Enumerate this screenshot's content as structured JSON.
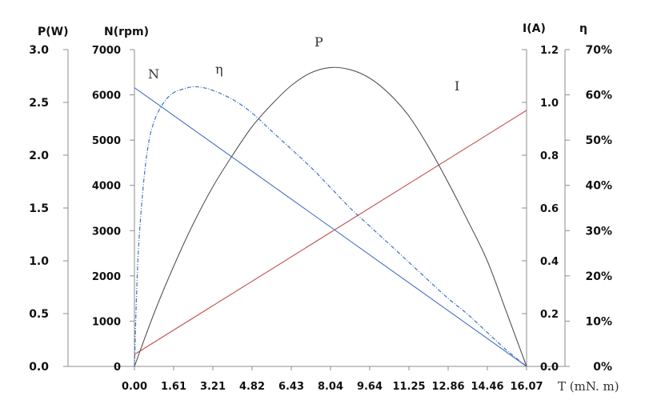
{
  "chart_data": {
    "type": "line",
    "x_axis": {
      "label": "T (mN. m)",
      "ticks": [
        "0.00",
        "1.61",
        "3.21",
        "4.82",
        "6.43",
        "8.04",
        "9.64",
        "11.25",
        "12.86",
        "14.46",
        "16.07"
      ],
      "range": [
        0,
        16.07
      ]
    },
    "y_axes": {
      "power": {
        "label": "P(W)",
        "ticks": [
          "0.0",
          "0.5",
          "1.0",
          "1.5",
          "2.0",
          "2.5",
          "3.0"
        ],
        "range": [
          0,
          3.0
        ]
      },
      "speed": {
        "label": "N(rpm)",
        "ticks": [
          "0",
          "1000",
          "2000",
          "3000",
          "4000",
          "5000",
          "6000",
          "7000"
        ],
        "range": [
          0,
          7000
        ]
      },
      "current": {
        "label": "I(A)",
        "ticks": [
          "0.0",
          "0.2",
          "0.4",
          "0.6",
          "0.8",
          "1.0",
          "1.2"
        ],
        "range": [
          0,
          1.2
        ]
      },
      "efficiency": {
        "label": "η",
        "ticks": [
          "0%",
          "10%",
          "20%",
          "30%",
          "40%",
          "50%",
          "60%",
          "70%"
        ],
        "range": [
          0,
          70
        ]
      }
    },
    "series": [
      {
        "name": "N",
        "axis": "speed",
        "color": "#4472c4",
        "style": "solid",
        "x": [
          0,
          16.07
        ],
        "y": [
          6160,
          0
        ]
      },
      {
        "name": "I",
        "axis": "current",
        "color": "#c0504d",
        "style": "solid",
        "x": [
          0,
          16.07
        ],
        "y": [
          0.045,
          0.97
        ]
      },
      {
        "name": "P",
        "axis": "power",
        "color": "#555555",
        "style": "solid",
        "x": [
          0,
          0.8,
          1.61,
          2.41,
          3.21,
          4.02,
          4.82,
          5.62,
          6.43,
          7.23,
          8.04,
          8.84,
          9.64,
          10.45,
          11.25,
          12.05,
          12.86,
          13.66,
          14.46,
          15.27,
          16.07
        ],
        "y": [
          0,
          0.5,
          0.95,
          1.35,
          1.7,
          2.0,
          2.27,
          2.48,
          2.66,
          2.78,
          2.83,
          2.81,
          2.73,
          2.58,
          2.37,
          2.08,
          1.74,
          1.38,
          1.0,
          0.5,
          0
        ]
      },
      {
        "name": "η",
        "axis": "efficiency",
        "color": "#4472c4",
        "style": "dashed",
        "x": [
          0,
          0.1,
          0.2,
          0.4,
          0.6,
          0.8,
          1.0,
          1.3,
          1.61,
          2.0,
          2.41,
          2.8,
          3.21,
          4.02,
          4.82,
          5.62,
          6.43,
          7.23,
          8.04,
          8.84,
          9.64,
          10.45,
          11.25,
          12.05,
          12.86,
          13.66,
          14.46,
          15.27,
          16.07
        ],
        "y": [
          0,
          18,
          29,
          42,
          50,
          54,
          56.5,
          59,
          60.5,
          61.3,
          61.8,
          61.6,
          61,
          59,
          56,
          52,
          48,
          44,
          39.5,
          35,
          31,
          27,
          23,
          19,
          15,
          11.5,
          7.5,
          3.5,
          0
        ]
      }
    ],
    "grid": false,
    "legend": "none"
  }
}
